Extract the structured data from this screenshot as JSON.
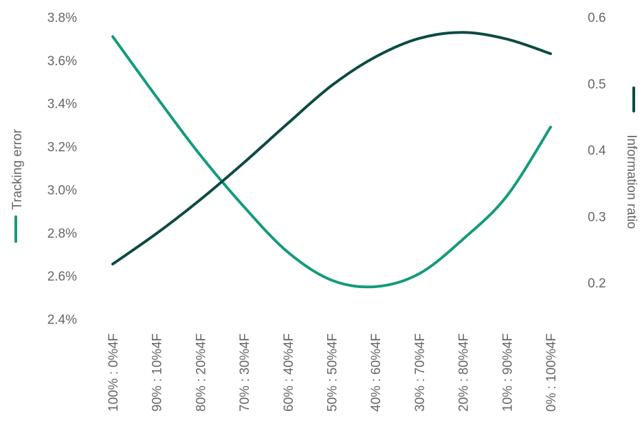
{
  "chart_data": {
    "type": "line",
    "title": "",
    "colors": {
      "tracking_error": "#139b7c",
      "information_ratio": "#0e4a43",
      "text": "#666666"
    },
    "categories": [
      "100% : 0%4F",
      "90% : 10%4F",
      "80% : 20%4F",
      "70% : 30%4F",
      "60% : 40%4F",
      "50% : 50%4F",
      "40% : 60%4F",
      "30% : 70%4F",
      "20% : 80%4F",
      "10% : 90%4F",
      "0% : 100%4F"
    ],
    "left_axis": {
      "label": "Tracking error",
      "ylim": [
        2.4,
        3.8
      ],
      "ticks": [
        2.4,
        2.6,
        2.8,
        3.0,
        3.2,
        3.4,
        3.6,
        3.8
      ],
      "tick_labels": [
        "2.4%",
        "2.6%",
        "2.8%",
        "3.0%",
        "3.2%",
        "3.4%",
        "3.6%",
        "3.8%"
      ]
    },
    "right_axis": {
      "label": "Information ratio",
      "ylim": [
        0.15,
        0.6
      ],
      "ticks": [
        0.2,
        0.3,
        0.4,
        0.5,
        0.6
      ],
      "tick_labels": [
        "0.2",
        "0.3",
        "0.4",
        "0.5",
        "0.6"
      ]
    },
    "series": [
      {
        "name": "Tracking error",
        "axis": "left",
        "values": [
          3.71,
          3.43,
          3.16,
          2.92,
          2.71,
          2.58,
          2.55,
          2.61,
          2.77,
          2.97,
          3.29
        ]
      },
      {
        "name": "Information ratio",
        "axis": "right",
        "values": [
          0.228,
          0.274,
          0.325,
          0.381,
          0.44,
          0.497,
          0.54,
          0.568,
          0.577,
          0.567,
          0.545
        ]
      }
    ],
    "grid": false,
    "legend": "axis-labels"
  }
}
